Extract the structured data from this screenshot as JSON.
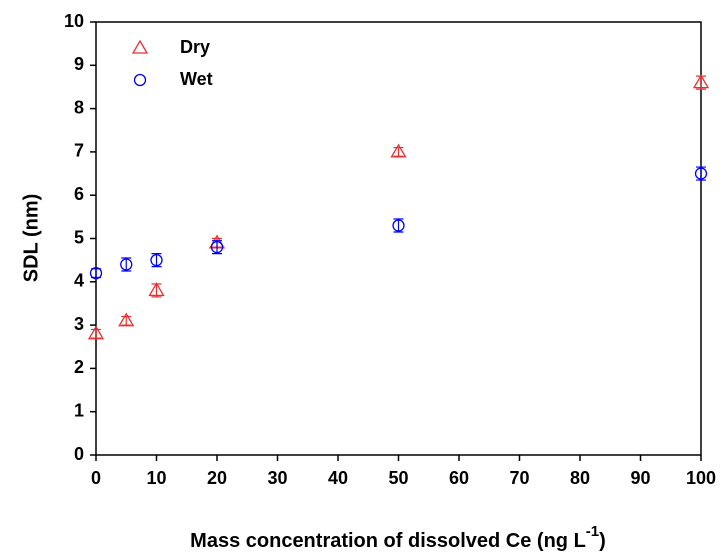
{
  "chart_data": {
    "type": "scatter",
    "x_label": {
      "text": "Mass concentration of dissolved Ce (ng L",
      "superscript": "-1",
      "suffix": ")"
    },
    "y_label": "SDL (nm)",
    "xlim": [
      0,
      100
    ],
    "xticks": [
      0,
      10,
      20,
      30,
      40,
      50,
      60,
      70,
      80,
      90,
      100
    ],
    "ylim": [
      0,
      10
    ],
    "yticks": [
      0,
      1,
      2,
      3,
      4,
      5,
      6,
      7,
      8,
      9,
      10
    ],
    "legend": "top-left",
    "series": [
      {
        "name": "Dry",
        "color": "#e8302f",
        "marker": "triangle",
        "x": [
          0,
          5,
          10,
          20,
          50,
          100
        ],
        "values": [
          2.8,
          3.1,
          3.8,
          4.9,
          7.0,
          8.6
        ],
        "errors": [
          0.1,
          0.1,
          0.15,
          0.1,
          0.1,
          0.15
        ]
      },
      {
        "name": "Wet",
        "color": "#0000ff",
        "marker": "circle",
        "x": [
          0,
          5,
          10,
          20,
          50,
          100
        ],
        "values": [
          4.2,
          4.4,
          4.5,
          4.8,
          5.3,
          6.5
        ],
        "errors": [
          0.1,
          0.15,
          0.15,
          0.15,
          0.15,
          0.15
        ]
      }
    ]
  }
}
